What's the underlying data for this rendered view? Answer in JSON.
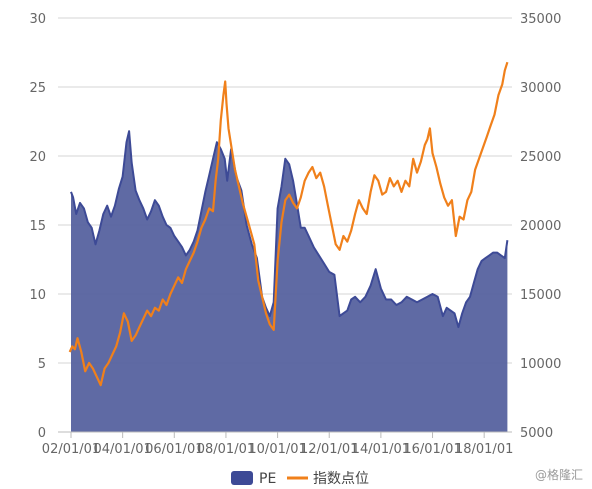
{
  "chart_data": {
    "type": "area",
    "x_tick_labels": [
      "02/01/01",
      "04/01/01",
      "06/01/01",
      "08/01/01",
      "10/01/01",
      "12/01/01",
      "14/01/01",
      "16/01/01",
      "18/01/01"
    ],
    "y_left": {
      "ticks": [
        0,
        5,
        10,
        15,
        20,
        25,
        30
      ],
      "ylim": [
        0,
        30
      ]
    },
    "y_right": {
      "ticks": [
        5000,
        10000,
        15000,
        20000,
        25000,
        30000,
        35000
      ],
      "ylim": [
        5000,
        35000
      ]
    },
    "grid": true,
    "legend": {
      "position": "bottom-center"
    },
    "series": [
      {
        "name": "PE",
        "kind": "area",
        "axis": "left",
        "color": "#3d4a96",
        "fill": "#56629f",
        "x": [
          2002.0,
          2002.08,
          2002.2,
          2002.35,
          2002.5,
          2002.65,
          2002.8,
          2002.95,
          2003.1,
          2003.25,
          2003.4,
          2003.55,
          2003.7,
          2003.85,
          2004.0,
          2004.15,
          2004.25,
          2004.35,
          2004.5,
          2004.65,
          2004.8,
          2004.95,
          2005.1,
          2005.25,
          2005.4,
          2005.55,
          2005.7,
          2005.85,
          2006.0,
          2006.15,
          2006.3,
          2006.45,
          2006.6,
          2006.75,
          2006.9,
          2007.05,
          2007.2,
          2007.35,
          2007.5,
          2007.65,
          2007.8,
          2007.95,
          2008.05,
          2008.2,
          2008.4,
          2008.6,
          2008.8,
          2009.0,
          2009.2,
          2009.4,
          2009.55,
          2009.7,
          2009.85,
          2010.0,
          2010.15,
          2010.3,
          2010.45,
          2010.6,
          2010.75,
          2010.9,
          2011.05,
          2011.2,
          2011.4,
          2011.6,
          2011.8,
          2012.0,
          2012.2,
          2012.4,
          2012.55,
          2012.7,
          2012.85,
          2013.0,
          2013.2,
          2013.4,
          2013.6,
          2013.8,
          2014.0,
          2014.2,
          2014.4,
          2014.6,
          2014.8,
          2015.0,
          2015.2,
          2015.4,
          2015.6,
          2015.8,
          2016.0,
          2016.2,
          2016.4,
          2016.55,
          2016.7,
          2016.85,
          2017.0,
          2017.15,
          2017.3,
          2017.45,
          2017.6,
          2017.75,
          2017.9,
          2018.05,
          2018.2,
          2018.35,
          2018.5,
          2018.65,
          2018.8,
          2018.9
        ],
        "values": [
          17.4,
          17.0,
          15.8,
          16.6,
          16.2,
          15.2,
          14.8,
          13.6,
          14.6,
          15.8,
          16.4,
          15.6,
          16.4,
          17.6,
          18.5,
          21.0,
          21.8,
          19.5,
          17.5,
          16.8,
          16.2,
          15.4,
          16.0,
          16.8,
          16.4,
          15.6,
          15.0,
          14.8,
          14.2,
          13.8,
          13.4,
          12.8,
          13.2,
          13.8,
          14.6,
          16.0,
          17.4,
          18.6,
          19.8,
          21.0,
          20.5,
          19.8,
          18.2,
          20.5,
          18.5,
          17.5,
          15.0,
          13.6,
          12.6,
          9.8,
          9.0,
          8.4,
          9.4,
          16.2,
          17.8,
          19.8,
          19.4,
          18.2,
          16.5,
          14.8,
          14.8,
          14.2,
          13.4,
          12.8,
          12.2,
          11.6,
          11.4,
          8.4,
          8.6,
          8.8,
          9.6,
          9.8,
          9.4,
          9.8,
          10.6,
          11.8,
          10.4,
          9.6,
          9.6,
          9.2,
          9.4,
          9.8,
          9.6,
          9.4,
          9.6,
          9.8,
          10.0,
          9.8,
          8.4,
          9.0,
          8.8,
          8.6,
          7.6,
          8.6,
          9.4,
          9.8,
          10.8,
          11.8,
          12.4,
          12.6,
          12.8,
          13.0,
          13.0,
          12.8,
          12.6,
          13.9
        ]
      },
      {
        "name": "指数点位",
        "kind": "line",
        "axis": "right",
        "color": "#f0801b",
        "x": [
          2001.95,
          2002.05,
          2002.15,
          2002.25,
          2002.4,
          2002.55,
          2002.7,
          2002.85,
          2003.0,
          2003.15,
          2003.3,
          2003.45,
          2003.6,
          2003.75,
          2003.9,
          2004.05,
          2004.2,
          2004.35,
          2004.5,
          2004.65,
          2004.8,
          2004.95,
          2005.1,
          2005.25,
          2005.4,
          2005.55,
          2005.7,
          2005.85,
          2006.0,
          2006.15,
          2006.3,
          2006.45,
          2006.6,
          2006.75,
          2006.9,
          2007.05,
          2007.2,
          2007.35,
          2007.5,
          2007.6,
          2007.7,
          2007.8,
          2007.9,
          2007.97,
          2008.02,
          2008.1,
          2008.2,
          2008.35,
          2008.5,
          2008.65,
          2008.8,
          2008.95,
          2009.1,
          2009.25,
          2009.4,
          2009.55,
          2009.7,
          2009.85,
          2010.0,
          2010.15,
          2010.3,
          2010.45,
          2010.6,
          2010.75,
          2010.9,
          2011.05,
          2011.2,
          2011.35,
          2011.5,
          2011.65,
          2011.8,
          2011.95,
          2012.1,
          2012.25,
          2012.4,
          2012.55,
          2012.7,
          2012.85,
          2013.0,
          2013.15,
          2013.3,
          2013.45,
          2013.6,
          2013.75,
          2013.9,
          2014.05,
          2014.2,
          2014.35,
          2014.5,
          2014.65,
          2014.8,
          2014.95,
          2015.1,
          2015.25,
          2015.4,
          2015.55,
          2015.7,
          2015.8,
          2015.9,
          2016.0,
          2016.15,
          2016.3,
          2016.45,
          2016.6,
          2016.75,
          2016.9,
          2017.05,
          2017.2,
          2017.35,
          2017.5,
          2017.65,
          2017.8,
          2017.95,
          2018.1,
          2018.25,
          2018.4,
          2018.55,
          2018.7,
          2018.8,
          2018.9
        ],
        "values": [
          10800,
          11200,
          11000,
          11800,
          10800,
          9400,
          10000,
          9600,
          9000,
          8400,
          9600,
          10000,
          10600,
          11200,
          12200,
          13600,
          13000,
          11600,
          12000,
          12600,
          13200,
          13800,
          13400,
          14000,
          13800,
          14600,
          14200,
          15000,
          15600,
          16200,
          15800,
          16800,
          17400,
          18000,
          18800,
          19800,
          20400,
          21200,
          21000,
          23200,
          24800,
          27600,
          29400,
          30400,
          28800,
          27000,
          25800,
          24000,
          22800,
          21600,
          20600,
          19600,
          18600,
          16000,
          14800,
          13600,
          12800,
          12400,
          17400,
          20200,
          21800,
          22200,
          21600,
          21200,
          22000,
          23200,
          23800,
          24200,
          23400,
          23800,
          22800,
          21400,
          20000,
          18600,
          18200,
          19200,
          18800,
          19600,
          20800,
          21800,
          21200,
          20800,
          22400,
          23600,
          23200,
          22200,
          22400,
          23400,
          22800,
          23200,
          22400,
          23200,
          22800,
          24800,
          23800,
          24600,
          25800,
          26200,
          27000,
          25200,
          24200,
          23000,
          22000,
          21400,
          21800,
          19200,
          20600,
          20400,
          21800,
          22400,
          24000,
          24800,
          25600,
          26400,
          27200,
          28000,
          29400,
          30200,
          31200,
          31800
        ]
      }
    ]
  },
  "legend": {
    "items": [
      {
        "label": "PE",
        "color": "#3d4a96"
      },
      {
        "label": "指数点位",
        "color": "#f0801b"
      }
    ]
  },
  "watermark": {
    "text": "@格隆汇"
  }
}
